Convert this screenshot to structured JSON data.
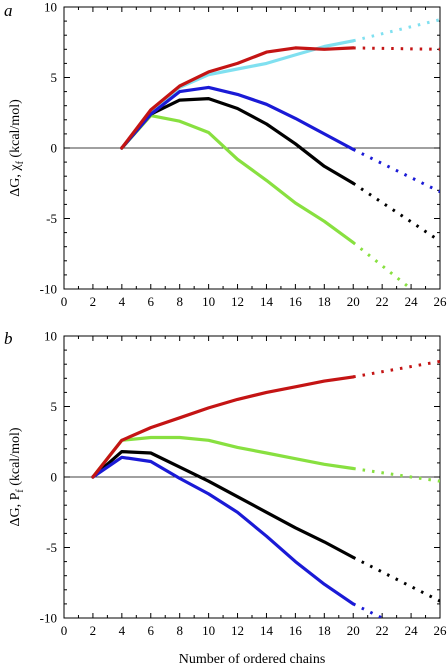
{
  "shared_x_label": "Number of ordered chains",
  "chart_data": [
    {
      "type": "line",
      "panel_label": "a",
      "ylabel": "ΔG, χ",
      "ylabel_sub": "f",
      "ylabel_unit": "(kcal/mol)",
      "xlabel": "",
      "xlim": [
        0,
        26
      ],
      "ylim": [
        -10,
        10
      ],
      "x_ticks": [
        0,
        2,
        4,
        6,
        8,
        10,
        12,
        14,
        16,
        18,
        20,
        22,
        24,
        26
      ],
      "y_ticks": [
        -10,
        -5,
        0,
        5,
        10
      ],
      "zero_line": true,
      "series": [
        {
          "color": "#80e0f0",
          "solid": [
            [
              4,
              0
            ],
            [
              6,
              2.6
            ],
            [
              8,
              4.3
            ],
            [
              10,
              5.2
            ],
            [
              12,
              5.6
            ],
            [
              14,
              6.0
            ],
            [
              16,
              6.6
            ],
            [
              18,
              7.2
            ],
            [
              20,
              7.6
            ]
          ],
          "dotted": [
            [
              20,
              7.6
            ],
            [
              26,
              9.1
            ]
          ]
        },
        {
          "color": "#88e040",
          "solid": [
            [
              4,
              0
            ],
            [
              6,
              2.3
            ],
            [
              8,
              1.9
            ],
            [
              10,
              1.1
            ],
            [
              12,
              -0.8
            ],
            [
              14,
              -2.3
            ],
            [
              16,
              -3.9
            ],
            [
              18,
              -5.2
            ],
            [
              20,
              -6.7
            ]
          ],
          "dotted": [
            [
              20,
              -6.7
            ],
            [
              24,
              -10
            ]
          ]
        },
        {
          "color": "#000000",
          "solid": [
            [
              4,
              0
            ],
            [
              6,
              2.4
            ],
            [
              8,
              3.4
            ],
            [
              10,
              3.5
            ],
            [
              12,
              2.8
            ],
            [
              14,
              1.7
            ],
            [
              16,
              0.3
            ],
            [
              18,
              -1.3
            ],
            [
              20,
              -2.5
            ]
          ],
          "dotted": [
            [
              20,
              -2.5
            ],
            [
              26,
              -6.6
            ]
          ]
        },
        {
          "color": "#1a1ad6",
          "solid": [
            [
              4,
              0
            ],
            [
              6,
              2.4
            ],
            [
              8,
              4.0
            ],
            [
              10,
              4.3
            ],
            [
              12,
              3.8
            ],
            [
              14,
              3.1
            ],
            [
              16,
              2.1
            ],
            [
              18,
              1.0
            ],
            [
              20,
              -0.1
            ]
          ],
          "dotted": [
            [
              20,
              -0.1
            ],
            [
              26,
              -3.1
            ]
          ]
        },
        {
          "color": "#c41414",
          "solid": [
            [
              4,
              0
            ],
            [
              6,
              2.7
            ],
            [
              8,
              4.4
            ],
            [
              10,
              5.4
            ],
            [
              12,
              6.0
            ],
            [
              14,
              6.8
            ],
            [
              16,
              7.1
            ],
            [
              18,
              7.0
            ],
            [
              20,
              7.1
            ]
          ],
          "dotted": [
            [
              20,
              7.1
            ],
            [
              26,
              7.0
            ]
          ]
        }
      ]
    },
    {
      "type": "line",
      "panel_label": "b",
      "ylabel": "ΔG, P",
      "ylabel_sub": "f",
      "ylabel_unit": "(kcal/mol)",
      "xlabel": "Number of ordered chains",
      "xlim": [
        0,
        26
      ],
      "ylim": [
        -10,
        10
      ],
      "x_ticks": [
        0,
        2,
        4,
        6,
        8,
        10,
        12,
        14,
        16,
        18,
        20,
        22,
        24,
        26
      ],
      "y_ticks": [
        -10,
        -5,
        0,
        5,
        10
      ],
      "zero_line": true,
      "series": [
        {
          "color": "#88e040",
          "solid": [
            [
              2,
              0
            ],
            [
              4,
              2.6
            ],
            [
              6,
              2.8
            ],
            [
              8,
              2.8
            ],
            [
              10,
              2.6
            ],
            [
              12,
              2.1
            ],
            [
              14,
              1.7
            ],
            [
              16,
              1.3
            ],
            [
              18,
              0.9
            ],
            [
              20,
              0.6
            ]
          ],
          "dotted": [
            [
              20,
              0.6
            ],
            [
              26,
              -0.3
            ]
          ]
        },
        {
          "color": "#000000",
          "solid": [
            [
              2,
              0
            ],
            [
              4,
              1.8
            ],
            [
              6,
              1.7
            ],
            [
              8,
              0.7
            ],
            [
              10,
              -0.3
            ],
            [
              12,
              -1.4
            ],
            [
              14,
              -2.5
            ],
            [
              16,
              -3.6
            ],
            [
              18,
              -4.6
            ],
            [
              20,
              -5.7
            ]
          ],
          "dotted": [
            [
              20,
              -5.7
            ],
            [
              26,
              -8.8
            ]
          ]
        },
        {
          "color": "#1a1ad6",
          "solid": [
            [
              2,
              0
            ],
            [
              4,
              1.4
            ],
            [
              6,
              1.1
            ],
            [
              8,
              -0.1
            ],
            [
              10,
              -1.2
            ],
            [
              12,
              -2.5
            ],
            [
              14,
              -4.2
            ],
            [
              16,
              -6.0
            ],
            [
              18,
              -7.6
            ],
            [
              20,
              -9.0
            ]
          ],
          "dotted": [
            [
              20,
              -9.0
            ],
            [
              22,
              -10
            ]
          ]
        },
        {
          "color": "#c41414",
          "solid": [
            [
              2,
              0
            ],
            [
              4,
              2.6
            ],
            [
              6,
              3.5
            ],
            [
              8,
              4.2
            ],
            [
              10,
              4.9
            ],
            [
              12,
              5.5
            ],
            [
              14,
              6.0
            ],
            [
              16,
              6.4
            ],
            [
              18,
              6.8
            ],
            [
              20,
              7.1
            ]
          ],
          "dotted": [
            [
              20,
              7.1
            ],
            [
              26,
              8.2
            ]
          ]
        }
      ]
    }
  ]
}
